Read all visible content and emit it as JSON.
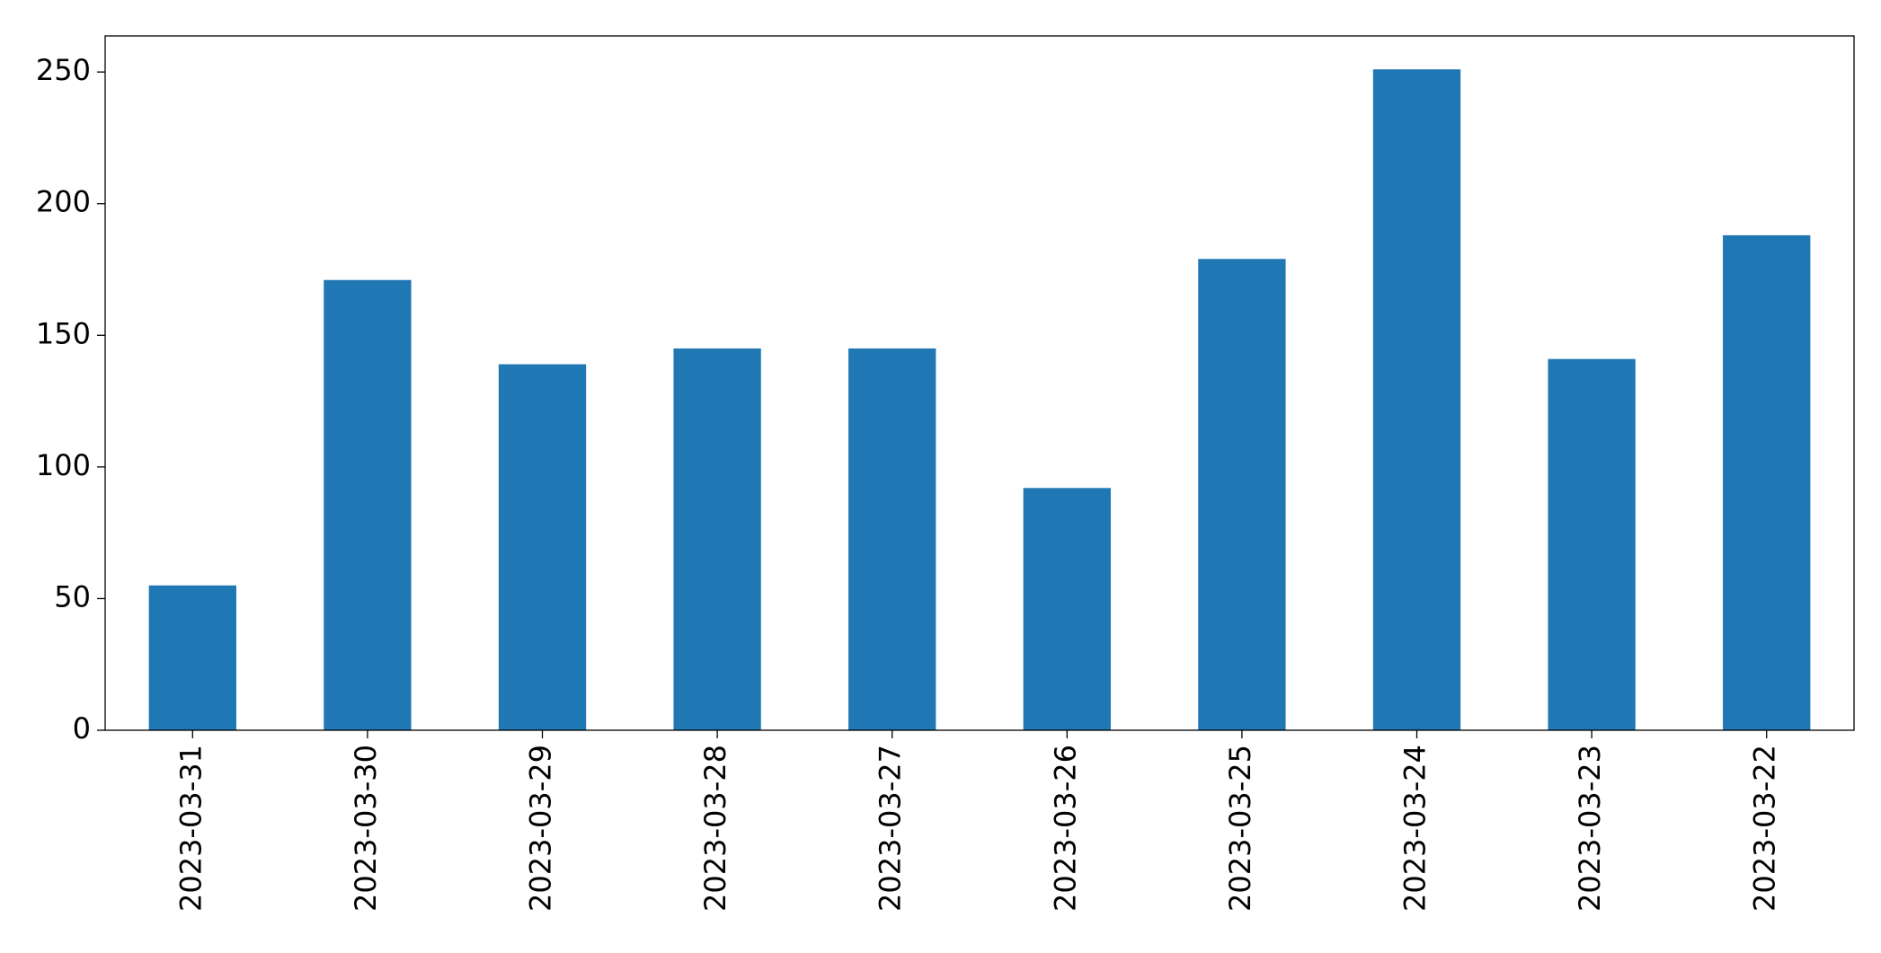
{
  "chart_data": {
    "type": "bar",
    "categories": [
      "2023-03-31",
      "2023-03-30",
      "2023-03-29",
      "2023-03-28",
      "2023-03-27",
      "2023-03-26",
      "2023-03-25",
      "2023-03-24",
      "2023-03-23",
      "2023-03-22"
    ],
    "values": [
      55,
      171,
      139,
      145,
      145,
      92,
      179,
      251,
      141,
      188
    ],
    "color": "#1f77b4",
    "ylim": [
      0,
      263.7
    ],
    "yticks": [
      0,
      50,
      100,
      150,
      200,
      250
    ],
    "grid": false
  }
}
